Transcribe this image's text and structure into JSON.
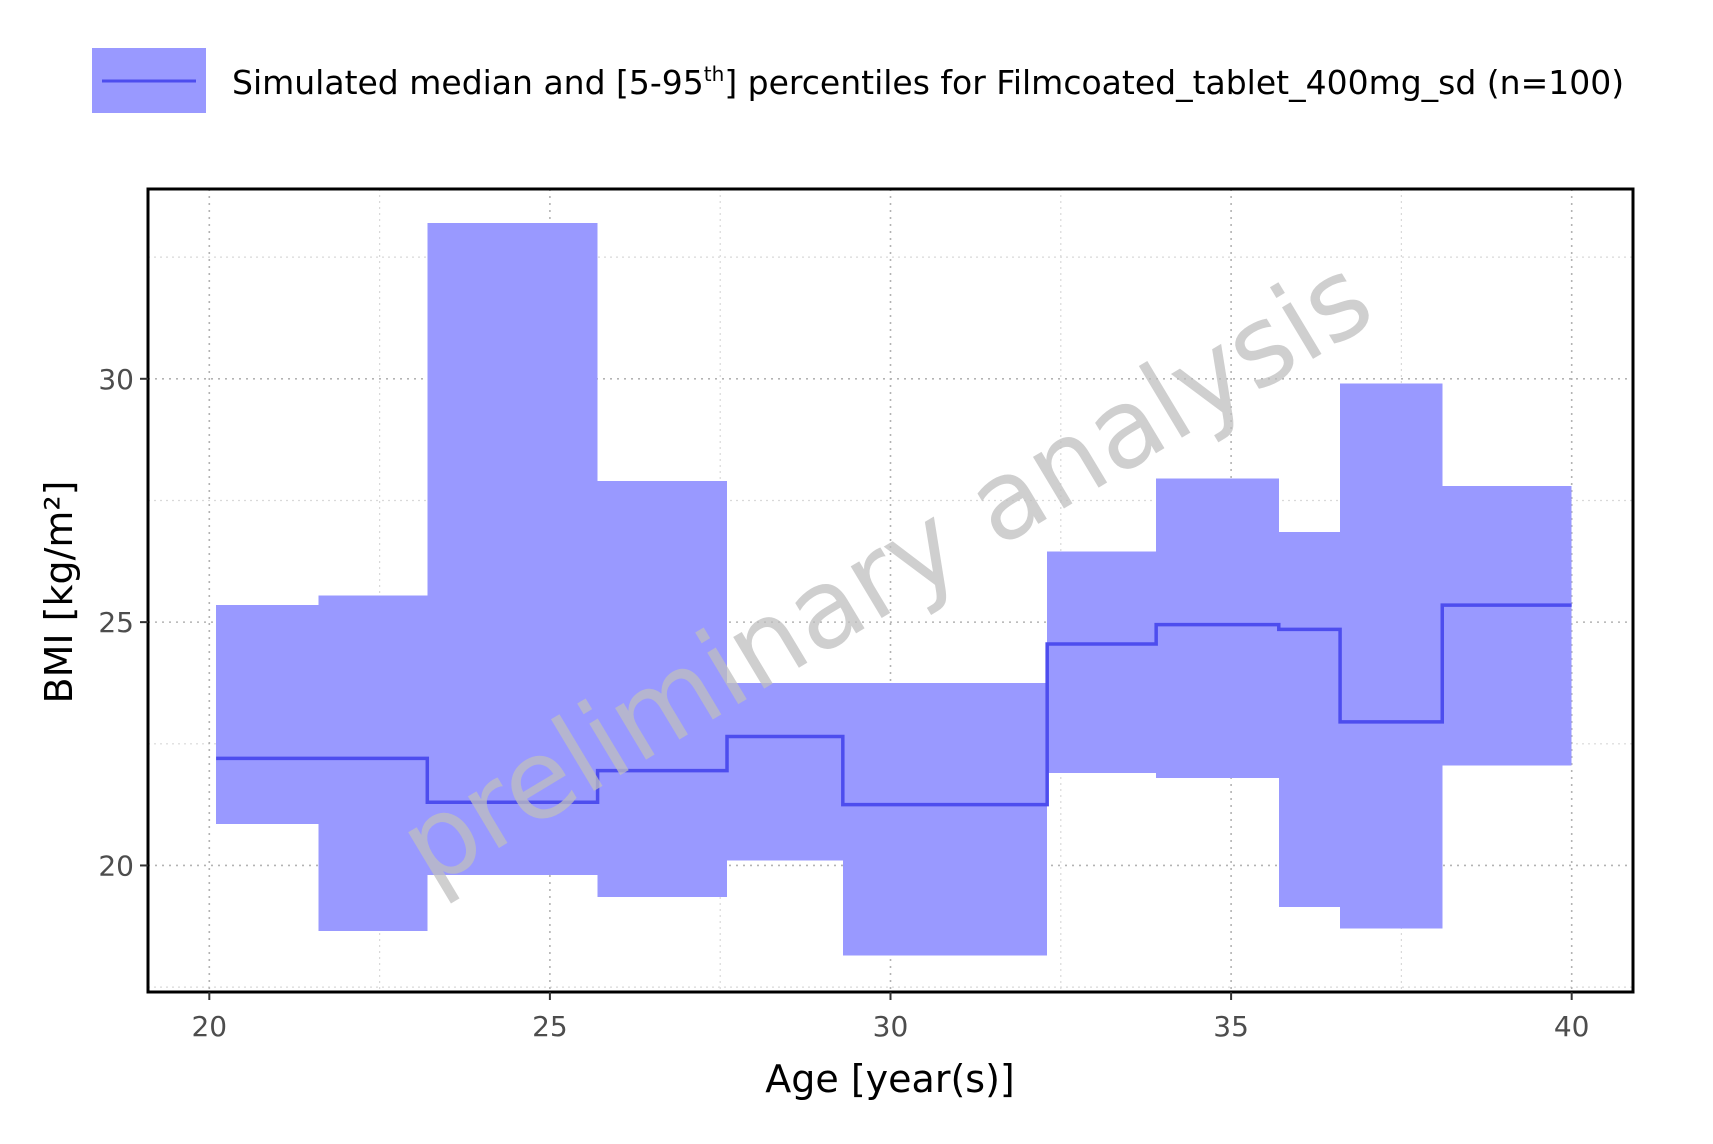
{
  "chart_data": {
    "type": "area",
    "title": "",
    "xlabel": "Age [year(s)]",
    "ylabel": "BMI [kg/m²]",
    "xlim": [
      19.1,
      40.9
    ],
    "ylim": [
      17.4,
      33.9
    ],
    "xticks": [
      20,
      25,
      30,
      35,
      40
    ],
    "yticks": [
      20,
      25,
      30
    ],
    "grid": "major and minor dotted grey",
    "legend_position": "top",
    "watermark": "preliminary analysis",
    "legend": {
      "label_prefix": "Simulated median and [5-95",
      "label_sup": "th",
      "label_suffix": "] percentiles for Filmcoated_tablet_400mg_sd (n=100)"
    },
    "colors": {
      "band": "#9999ff",
      "median": "#4d4dee"
    },
    "series": [
      {
        "name": "Simulated median and [5-95th] percentiles for Filmcoated_tablet_400mg_sd (n=100)",
        "bins": [
          {
            "x0": 20.1,
            "x1": 21.6,
            "median": 22.2,
            "p5": 20.85,
            "p95": 25.35
          },
          {
            "x0": 21.6,
            "x1": 23.2,
            "median": 22.2,
            "p5": 18.65,
            "p95": 25.55
          },
          {
            "x0": 23.2,
            "x1": 25.7,
            "median": 21.3,
            "p5": 19.8,
            "p95": 33.2
          },
          {
            "x0": 25.7,
            "x1": 27.6,
            "median": 21.95,
            "p5": 19.35,
            "p95": 27.9
          },
          {
            "x0": 27.6,
            "x1": 29.3,
            "median": 22.65,
            "p5": 20.1,
            "p95": 23.75
          },
          {
            "x0": 29.3,
            "x1": 32.3,
            "median": 21.25,
            "p5": 18.15,
            "p95": 23.75
          },
          {
            "x0": 32.3,
            "x1": 33.9,
            "median": 24.55,
            "p5": 21.9,
            "p95": 26.45
          },
          {
            "x0": 33.9,
            "x1": 35.7,
            "median": 24.95,
            "p5": 21.8,
            "p95": 27.95
          },
          {
            "x0": 35.7,
            "x1": 36.6,
            "median": 24.85,
            "p5": 19.15,
            "p95": 26.85
          },
          {
            "x0": 36.6,
            "x1": 38.1,
            "median": 22.95,
            "p5": 18.7,
            "p95": 29.9
          },
          {
            "x0": 38.1,
            "x1": 40.0,
            "median": 25.35,
            "p5": 22.05,
            "p95": 27.8
          }
        ]
      }
    ]
  }
}
